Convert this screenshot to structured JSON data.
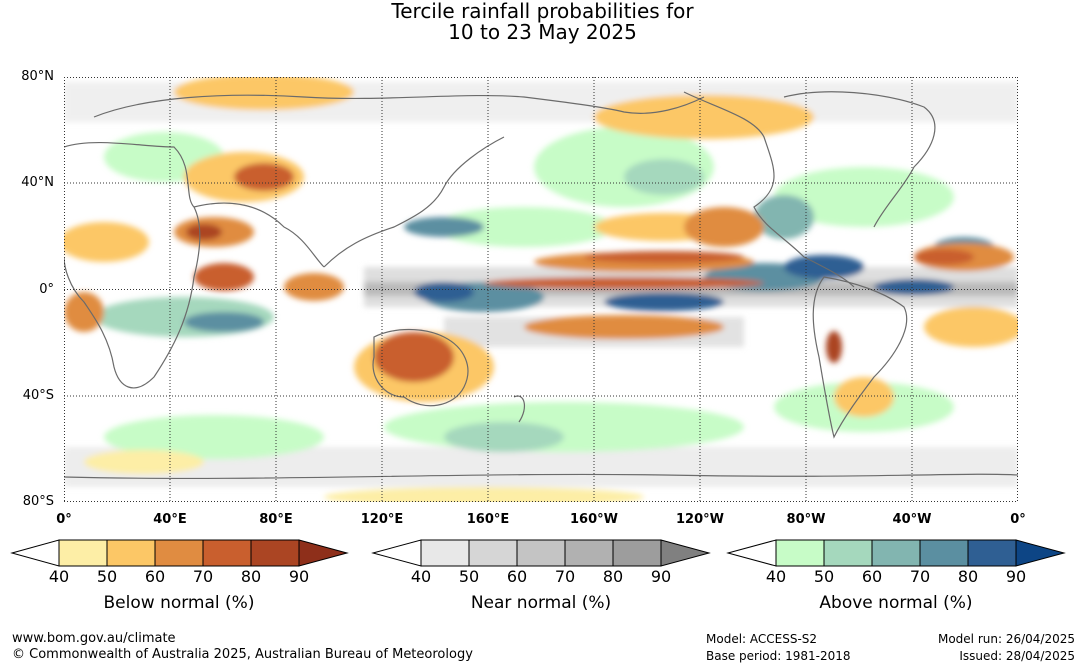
{
  "title": {
    "line1": "Tercile rainfall probabilities for",
    "line2": "10 to 23 May 2025"
  },
  "map": {
    "lat_labels": [
      "80°N",
      "40°N",
      "0°",
      "40°S",
      "80°S"
    ],
    "lon_labels": [
      "0°",
      "40°E",
      "80°E",
      "120°E",
      "160°E",
      "160°W",
      "120°W",
      "80°W",
      "40°W",
      "0°"
    ]
  },
  "colors": {
    "below": [
      "#fdeea6",
      "#fcc766",
      "#e08c41",
      "#c95f2e",
      "#ab4523",
      "#8e2f1a"
    ],
    "near": [
      "#e8e8e8",
      "#d6d6d6",
      "#c4c4c4",
      "#b1b1b1",
      "#9d9d9d",
      "#808080"
    ],
    "above": [
      "#c7fcc7",
      "#a5d8bd",
      "#82b5b0",
      "#5b8fa1",
      "#2f5f93",
      "#0d4585"
    ],
    "land_outline": "#6b6b6b",
    "grid": "#333333"
  },
  "legends": [
    {
      "id": "below",
      "title": "Below normal (%)",
      "ticks": [
        "40",
        "50",
        "60",
        "70",
        "80",
        "90"
      ]
    },
    {
      "id": "near",
      "title": "Near normal (%)",
      "ticks": [
        "40",
        "50",
        "60",
        "70",
        "80",
        "90"
      ]
    },
    {
      "id": "above",
      "title": "Above normal (%)",
      "ticks": [
        "40",
        "50",
        "60",
        "70",
        "80",
        "90"
      ]
    }
  ],
  "footer": {
    "website": "www.bom.gov.au/climate",
    "copyright": "© Commonwealth of Australia 2025, Australian Bureau of Meteorology",
    "model": "Model: ACCESS-S2",
    "base_period": "Base period: 1981-2018",
    "model_run": "Model run: 26/04/2025",
    "issued": "Issued: 28/04/2025"
  }
}
